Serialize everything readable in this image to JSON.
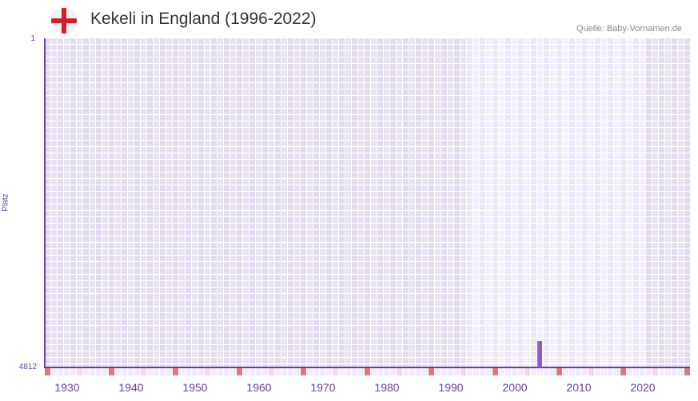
{
  "header": {
    "title": "Kekeli in England (1996-2022)",
    "flag_icon": "england-flag-icon",
    "source": "Quelle: Baby-Vornamen.de"
  },
  "colors": {
    "accent": "#6a3fa0",
    "bar": "#8e5ccb",
    "bg_dark_a": "#e2dcee",
    "bg_dark_b": "#e7e3ef",
    "bg_light_a": "#ede8f8",
    "bg_light_b": "#f3f0fb",
    "decade_red": "#e57380",
    "halfdecade_pink": "#f7d7e0",
    "strip_light": "#f0edf9"
  },
  "chart_data": {
    "type": "bar",
    "title": "Kekeli in England (1996-2022)",
    "xlabel": "",
    "ylabel": "Platz",
    "y_inverted": true,
    "ylim": [
      1,
      4812
    ],
    "yticks": [
      "1",
      "4812"
    ],
    "xlim": [
      1928,
      2028
    ],
    "xticks": [
      "1930",
      "1940",
      "1950",
      "1960",
      "1970",
      "1980",
      "1990",
      "2000",
      "2010",
      "2020"
    ],
    "highlight_range": [
      1996,
      2021
    ],
    "series": [
      {
        "name": "Platz",
        "x": [
          2005
        ],
        "values": [
          4431
        ]
      }
    ],
    "grid": true,
    "legend": "none"
  }
}
